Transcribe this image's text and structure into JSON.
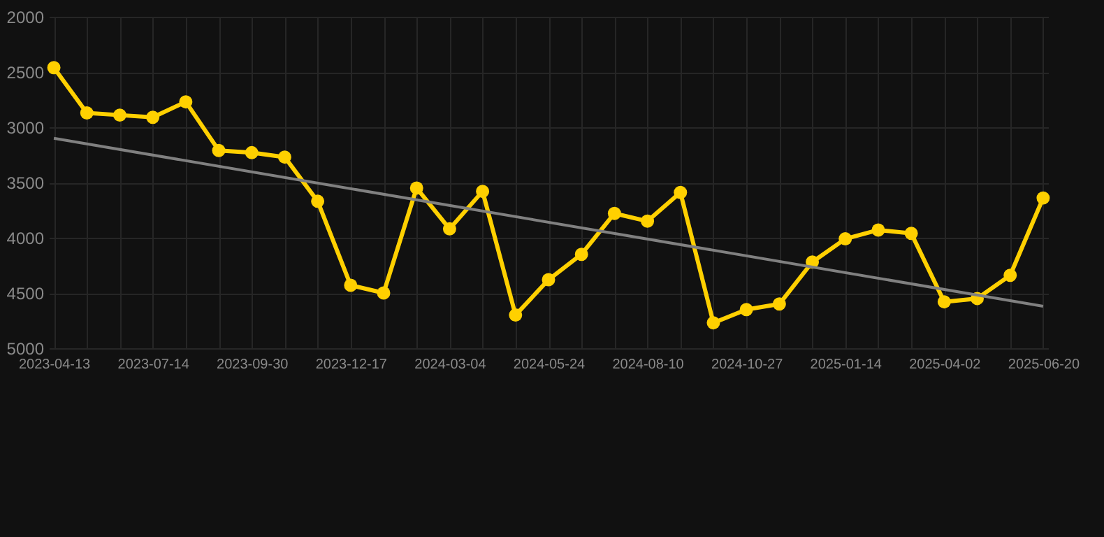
{
  "chart_data": {
    "type": "line",
    "categories": [
      "2023-04-13",
      null,
      null,
      "2023-07-14",
      null,
      null,
      "2023-09-30",
      null,
      null,
      "2023-12-17",
      null,
      null,
      "2024-03-04",
      null,
      null,
      "2024-05-24",
      null,
      null,
      "2024-08-10",
      null,
      null,
      "2024-10-27",
      null,
      null,
      "2025-01-14",
      null,
      null,
      "2025-04-02",
      null,
      null,
      "2025-06-20"
    ],
    "series": [
      {
        "color": "#ffd000",
        "marker": "circle",
        "values": [
          2460,
          2870,
          2890,
          2910,
          2770,
          3210,
          3230,
          3270,
          3670,
          4430,
          4500,
          3550,
          3920,
          3580,
          4700,
          4380,
          4150,
          3780,
          3850,
          3590,
          4770,
          4650,
          4600,
          4220,
          4010,
          3930,
          3960,
          4580,
          4550,
          4340,
          3640
        ]
      },
      {
        "color": "#808080",
        "marker": "none",
        "values": [
          3100,
          null,
          null,
          null,
          null,
          null,
          null,
          null,
          null,
          null,
          null,
          null,
          null,
          null,
          null,
          null,
          null,
          null,
          null,
          null,
          null,
          null,
          null,
          null,
          null,
          null,
          null,
          null,
          null,
          null,
          4620
        ]
      }
    ],
    "ylim": [
      5000,
      2000
    ],
    "yticks": [
      2000,
      2500,
      3000,
      3500,
      4000,
      4500,
      5000
    ],
    "grid": true
  }
}
